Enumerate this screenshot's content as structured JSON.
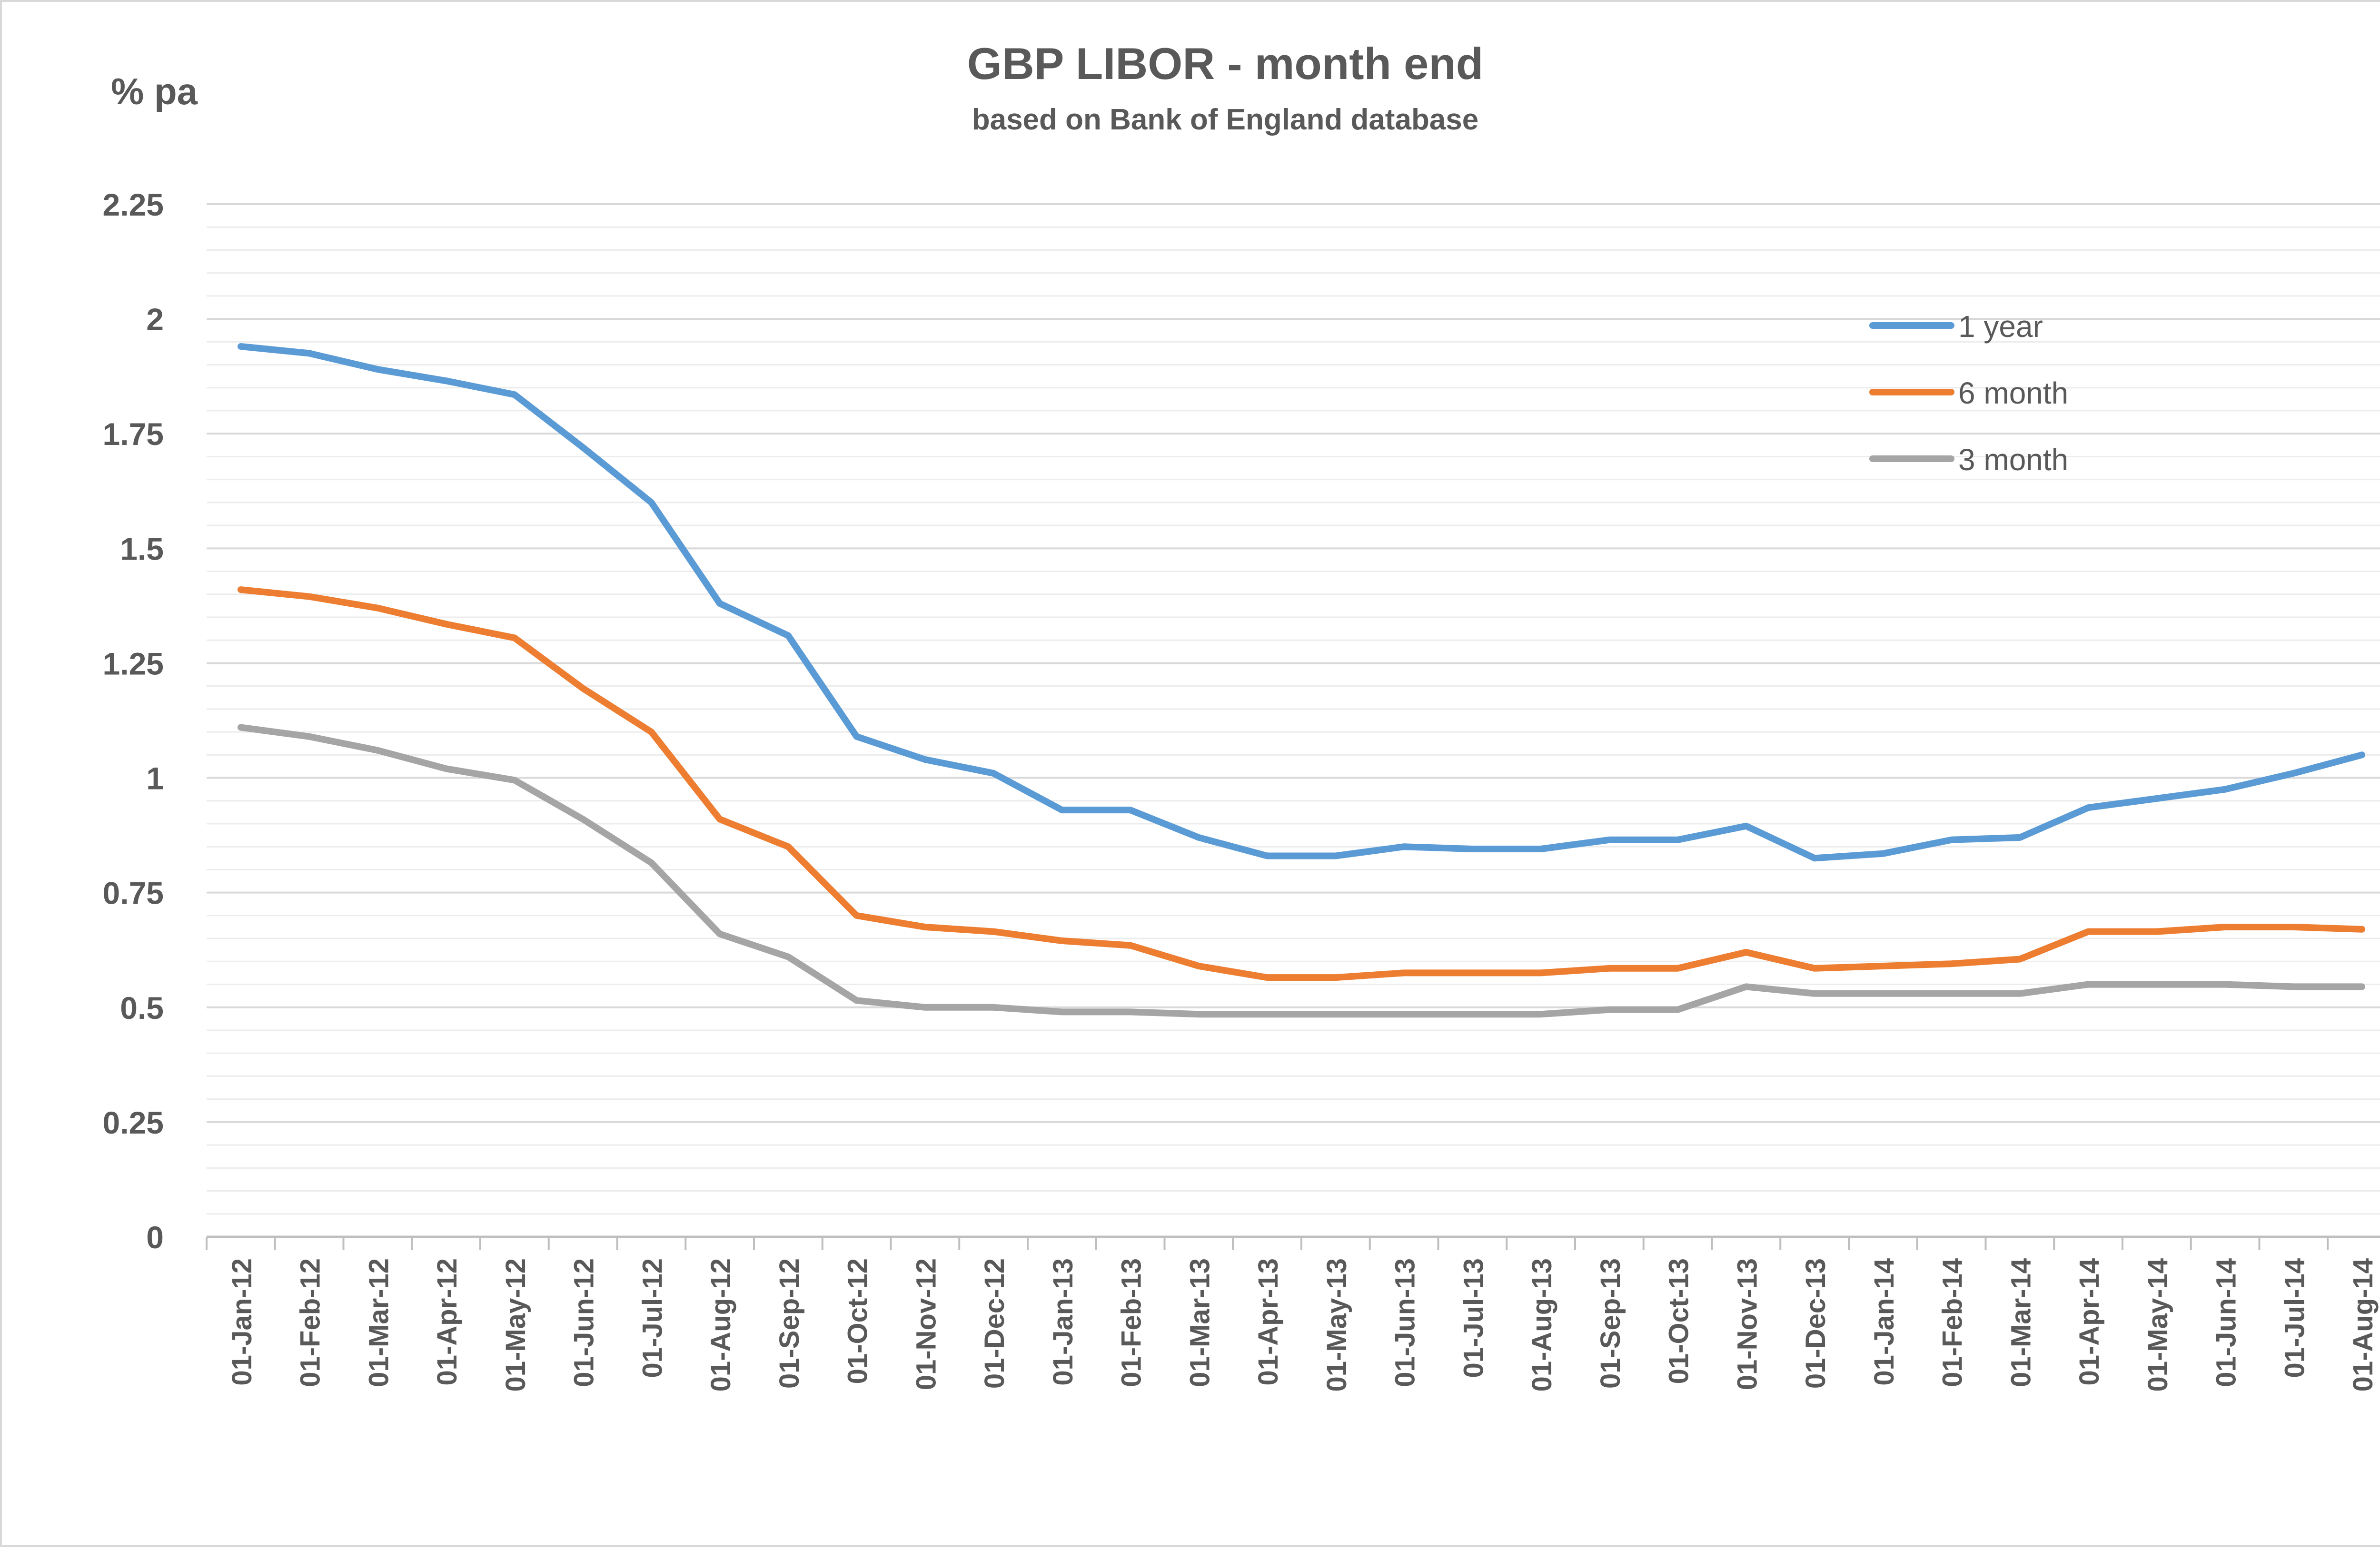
{
  "chart_data": {
    "type": "line",
    "title": "GBP LIBOR - month end",
    "subtitle": "based on Bank of England database",
    "ylabel": "% pa",
    "xlabel": "",
    "ylim": [
      0,
      2.25
    ],
    "yticks": [
      "2.25",
      "2",
      "1.75",
      "1.5",
      "1.25",
      "1",
      "0.75",
      "0.5",
      "0.25",
      "0"
    ],
    "ytick_values": [
      2.25,
      2,
      1.75,
      1.5,
      1.25,
      1,
      0.75,
      0.5,
      0.25,
      0
    ],
    "minor_gridlines": true,
    "legend_position": "top-right",
    "categories": [
      "01-Jan-12",
      "01-Feb-12",
      "01-Mar-12",
      "01-Apr-12",
      "01-May-12",
      "01-Jun-12",
      "01-Jul-12",
      "01-Aug-12",
      "01-Sep-12",
      "01-Oct-12",
      "01-Nov-12",
      "01-Dec-12",
      "01-Jan-13",
      "01-Feb-13",
      "01-Mar-13",
      "01-Apr-13",
      "01-May-13",
      "01-Jun-13",
      "01-Jul-13",
      "01-Aug-13",
      "01-Sep-13",
      "01-Oct-13",
      "01-Nov-13",
      "01-Dec-13",
      "01-Jan-14",
      "01-Feb-14",
      "01-Mar-14",
      "01-Apr-14",
      "01-May-14",
      "01-Jun-14",
      "01-Jul-14",
      "01-Aug-14"
    ],
    "series": [
      {
        "name": "1 year",
        "color": "#5b9bd5",
        "values": [
          1.94,
          1.925,
          1.89,
          1.865,
          1.835,
          1.72,
          1.6,
          1.38,
          1.31,
          1.09,
          1.04,
          1.01,
          0.93,
          0.93,
          0.87,
          0.83,
          0.83,
          0.85,
          0.845,
          0.845,
          0.865,
          0.865,
          0.895,
          0.825,
          0.835,
          0.865,
          0.87,
          0.935,
          0.955,
          0.975,
          1.01,
          1.05
        ]
      },
      {
        "name": "6 month",
        "color": "#ed7d31",
        "values": [
          1.41,
          1.395,
          1.37,
          1.335,
          1.305,
          1.195,
          1.1,
          0.91,
          0.85,
          0.7,
          0.675,
          0.665,
          0.645,
          0.635,
          0.59,
          0.565,
          0.565,
          0.575,
          0.575,
          0.575,
          0.585,
          0.585,
          0.62,
          0.585,
          0.59,
          0.595,
          0.605,
          0.665,
          0.665,
          0.675,
          0.675,
          0.67
        ]
      },
      {
        "name": "3 month",
        "color": "#a5a5a5",
        "values": [
          1.11,
          1.09,
          1.06,
          1.02,
          0.995,
          0.91,
          0.815,
          0.66,
          0.61,
          0.515,
          0.5,
          0.5,
          0.49,
          0.49,
          0.485,
          0.485,
          0.485,
          0.485,
          0.485,
          0.485,
          0.495,
          0.495,
          0.545,
          0.53,
          0.53,
          0.53,
          0.53,
          0.55,
          0.55,
          0.55,
          0.545,
          0.545
        ]
      }
    ]
  }
}
